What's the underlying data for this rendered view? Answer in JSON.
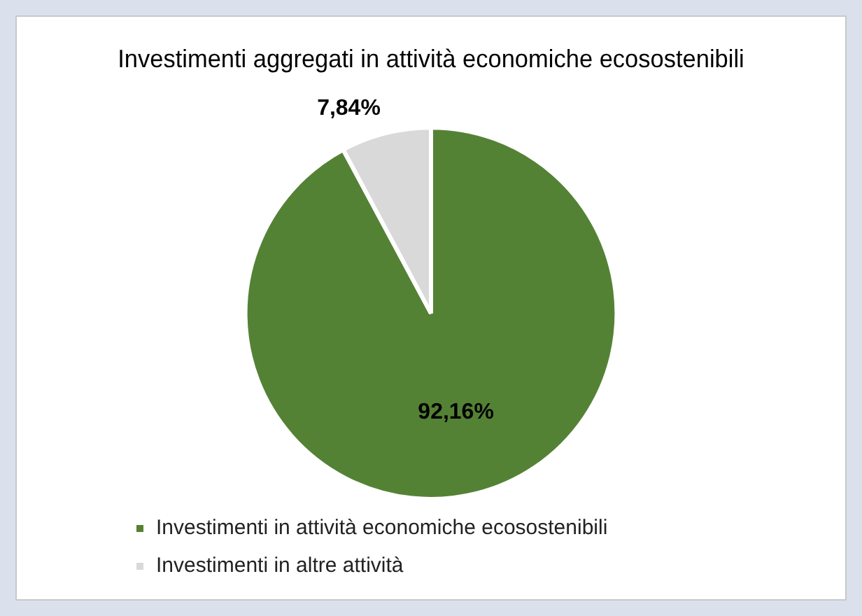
{
  "chart_data": {
    "type": "pie",
    "title": "Investimenti aggregati in attività economiche ecosostenibili",
    "categories": [
      "Investimenti in attività economiche ecosostenibili",
      "Investimenti in altre attività"
    ],
    "values": [
      92.16,
      7.84
    ],
    "colors": [
      "#548235",
      "#d9d9d9"
    ],
    "value_labels": [
      "92,16%",
      "7,84%"
    ],
    "legend": "bottom"
  }
}
